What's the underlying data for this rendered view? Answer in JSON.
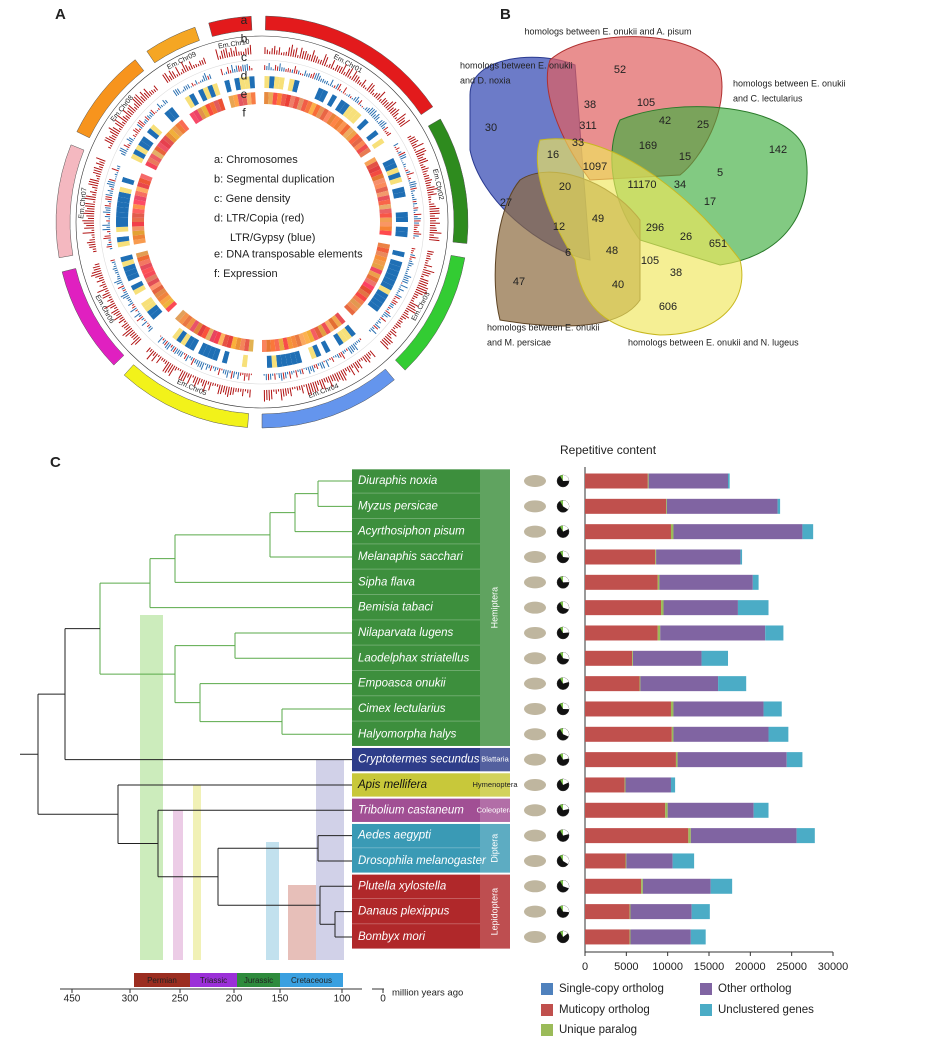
{
  "circos": {
    "label": "A",
    "tracks": [
      "a",
      "b",
      "c",
      "d",
      "e",
      "f"
    ],
    "legend": [
      "a: Chromosomes",
      "b: Segmental duplication",
      "c: Gene density",
      "d: LTR/Copia (red)",
      "LTR/Gypsy (blue)",
      "e: DNA transposable elements",
      "f: Expression"
    ],
    "chromosomes": [
      {
        "name": "Em.Chr01",
        "color": "#e31a1c"
      },
      {
        "name": "Em.Chr02",
        "color": "#2e8b1e"
      },
      {
        "name": "Em.Chr03",
        "color": "#33cc33"
      },
      {
        "name": "Em.Chr04",
        "color": "#6495ed"
      },
      {
        "name": "Em.Chr05",
        "color": "#f2f21a"
      },
      {
        "name": "Em.Chr06",
        "color": "#e020c0"
      },
      {
        "name": "Em.Chr07",
        "color": "#f4b8c0"
      },
      {
        "name": "Em.Chr08",
        "color": "#f7941d"
      },
      {
        "name": "Em.Chr09",
        "color": "#f5a623"
      },
      {
        "name": "Em.Chr10",
        "color": "#e31a1c"
      }
    ]
  },
  "venn": {
    "label": "B",
    "sets": [
      {
        "lines": [
          "homologs between E. onukii and A. pisum"
        ]
      },
      {
        "lines": [
          "homologs between E. onukii",
          "and D. noxia"
        ]
      },
      {
        "lines": [
          "homologs between E. onukii",
          "and C. lectularius"
        ]
      },
      {
        "lines": [
          "homologs between E. onukii",
          "and M. persicae"
        ]
      },
      {
        "lines": [
          "homologs between E. onukii and N. lugeus"
        ]
      }
    ],
    "counts": [
      52,
      38,
      105,
      42,
      25,
      30,
      311,
      142,
      16,
      33,
      169,
      15,
      1097,
      5,
      34,
      11170,
      20,
      17,
      27,
      49,
      296,
      12,
      26,
      651,
      6,
      48,
      105,
      38,
      47,
      40,
      606
    ]
  },
  "tree": {
    "label": "C",
    "orders": [
      {
        "name": "Hemiptera",
        "color": "#3d8f3d",
        "rows": [
          0,
          10
        ]
      },
      {
        "name": "Blattaria",
        "color": "#2e3d8a",
        "rows": [
          11,
          11
        ]
      },
      {
        "name": "Hymenoptera",
        "color": "#c8c83a",
        "rows": [
          12,
          12
        ]
      },
      {
        "name": "Coleoptera",
        "color": "#a14f94",
        "rows": [
          13,
          13
        ]
      },
      {
        "name": "Diptera",
        "color": "#3a9ab5",
        "rows": [
          14,
          15
        ]
      },
      {
        "name": "Lepidoptera",
        "color": "#b0282a",
        "rows": [
          16,
          18
        ]
      }
    ],
    "periods": [
      {
        "name": "Permian",
        "color": "#9b2d20"
      },
      {
        "name": "Triassic",
        "color": "#9b30d8"
      },
      {
        "name": "Jurassic",
        "color": "#2e8b3d"
      },
      {
        "name": "Cretaceous",
        "color": "#3aa0e0"
      }
    ],
    "time_ticks": [
      450,
      300,
      250,
      200,
      150,
      100,
      0
    ],
    "time_label": "million years ago"
  },
  "chart_data": {
    "type": "bar",
    "stacked": true,
    "orientation": "horizontal",
    "title": "Repetitive content",
    "categories": [
      "Diuraphis noxia",
      "Myzus persicae",
      "Acyrthosiphon pisum",
      "Melanaphis sacchari",
      "Sipha flava",
      "Bemisia tabaci",
      "Nilaparvata lugens",
      "Laodelphax striatellus",
      "Empoasca onukii",
      "Cimex lectularius",
      "Halyomorpha halys",
      "Cryptotermes secundus",
      "Apis mellifera",
      "Tribolium castaneum",
      "Aedes aegypti",
      "Drosophila melanogaster",
      "Plutella xylostella",
      "Danaus plexippus",
      "Bombyx mori"
    ],
    "series": [
      {
        "name": "Single-copy ortholog",
        "color": "#4f81bd",
        "values": [
          0,
          0,
          0,
          0,
          0,
          0,
          0,
          0,
          0,
          0,
          0,
          0,
          0,
          0,
          0,
          0,
          0,
          0,
          0
        ]
      },
      {
        "name": "Muticopy ortholog",
        "color": "#c0504d",
        "values": [
          7600,
          9800,
          10400,
          8500,
          8800,
          9200,
          8800,
          5700,
          6600,
          10400,
          10500,
          11000,
          4800,
          9700,
          12500,
          4900,
          6800,
          5400,
          5400
        ]
      },
      {
        "name": "Unique paralog",
        "color": "#9bbb59",
        "values": [
          100,
          100,
          300,
          100,
          200,
          300,
          300,
          100,
          100,
          300,
          200,
          200,
          100,
          300,
          300,
          100,
          200,
          100,
          100
        ]
      },
      {
        "name": "Other ortholog",
        "color": "#8064a2",
        "values": [
          9600,
          13400,
          15600,
          10200,
          11300,
          9000,
          12700,
          8300,
          9400,
          10900,
          11500,
          13200,
          5500,
          10400,
          12800,
          5600,
          8200,
          7400,
          7300
        ]
      },
      {
        "name": "Unclustered genes",
        "color": "#4bacc6",
        "values": [
          200,
          300,
          1300,
          200,
          700,
          3700,
          2200,
          3200,
          3400,
          2200,
          2400,
          1900,
          500,
          1800,
          2200,
          2600,
          2600,
          2200,
          1800
        ]
      }
    ],
    "xlim": [
      0,
      30000
    ],
    "xticks": [
      0,
      5000,
      10000,
      15000,
      20000,
      25000,
      30000
    ]
  }
}
